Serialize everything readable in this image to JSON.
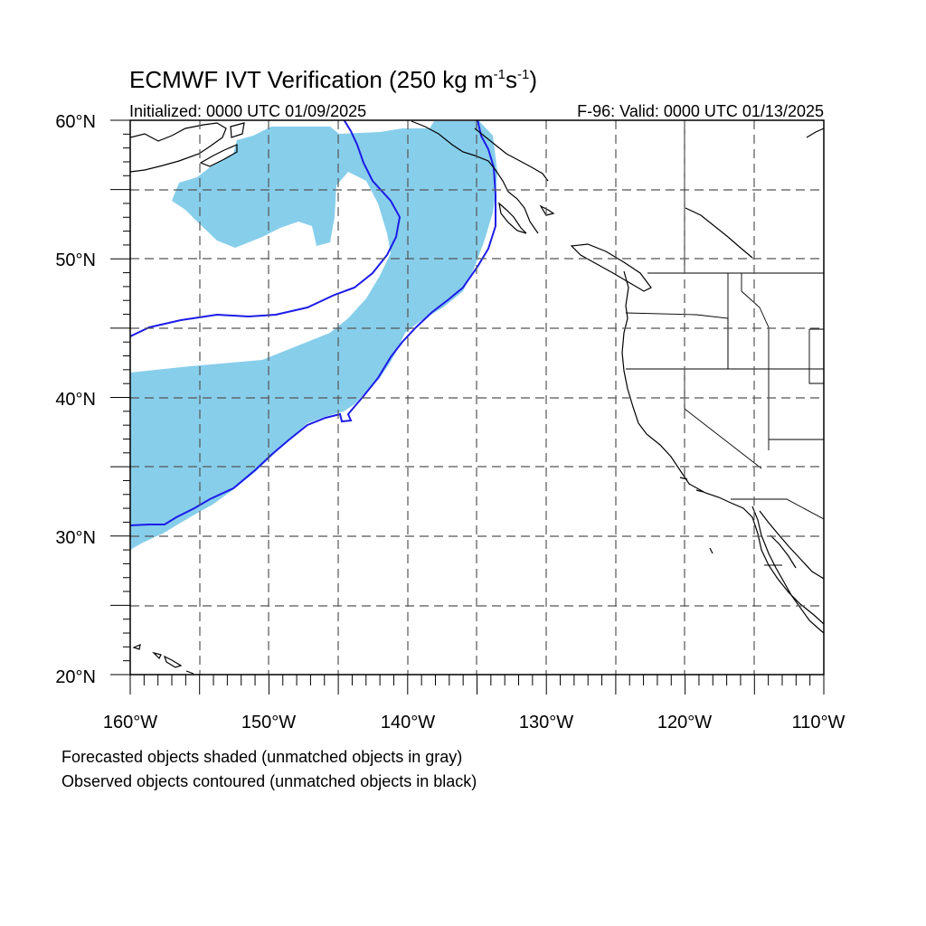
{
  "title": {
    "main": "ECMWF IVT Verification (250 kg m",
    "exp1": "-1",
    "mid": "s",
    "exp2": "-1",
    "close": ")"
  },
  "initialized": "Initialized: 0000 UTC 01/09/2025",
  "valid": "F-96: Valid: 0000 UTC 01/13/2025",
  "lat_labels": [
    "60°N",
    "50°N",
    "40°N",
    "30°N",
    "20°N"
  ],
  "lon_labels": [
    "160°W",
    "150°W",
    "140°W",
    "130°W",
    "120°W",
    "110°W"
  ],
  "map_extent": {
    "lon_min": -160,
    "lon_max": -110,
    "lat_min": 20,
    "lat_max": 60
  },
  "notes": [
    "Forecasted objects shaded (unmatched objects in gray)",
    "Observed objects contoured (unmatched objects in black)"
  ],
  "colors": {
    "forecast_fill": "#87ceeb",
    "observed_contour": "#1c1ce8",
    "coast": "#000000",
    "grid": "#555555"
  }
}
